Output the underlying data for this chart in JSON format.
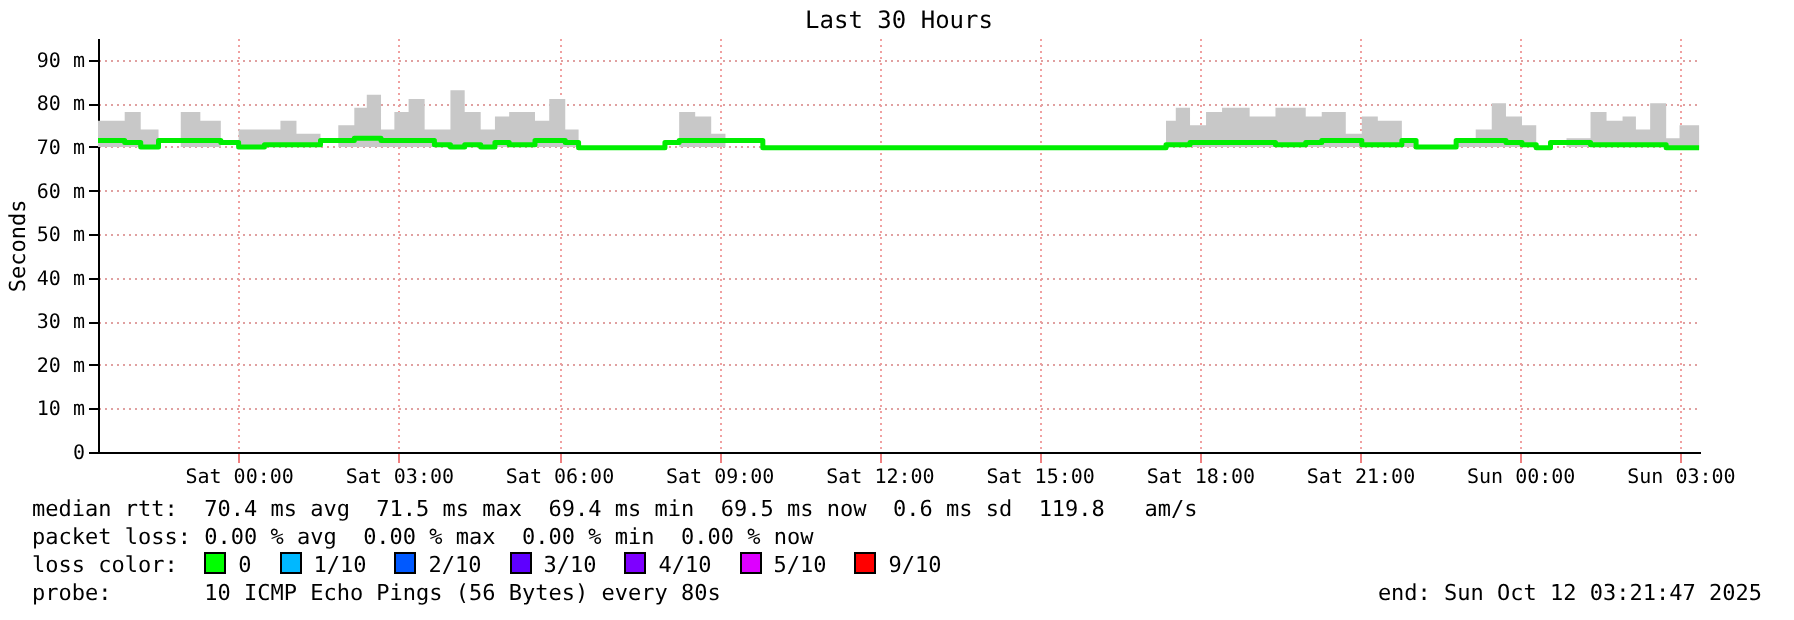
{
  "chart_data": {
    "type": "step",
    "title": "Last 30 Hours",
    "ylabel": "Seconds",
    "x": [
      "2025-10-10T21:22",
      "2025-10-10T21:52",
      "2025-10-10T22:10",
      "2025-10-10T22:30",
      "2025-10-10T22:55",
      "2025-10-10T23:17",
      "2025-10-10T23:40",
      "2025-10-11T00:00",
      "2025-10-11T00:29",
      "2025-10-11T00:47",
      "2025-10-11T01:05",
      "2025-10-11T01:32",
      "2025-10-11T01:52",
      "2025-10-11T02:10",
      "2025-10-11T02:24",
      "2025-10-11T02:40",
      "2025-10-11T02:55",
      "2025-10-11T03:11",
      "2025-10-11T03:29",
      "2025-10-11T03:40",
      "2025-10-11T03:58",
      "2025-10-11T04:14",
      "2025-10-11T04:32",
      "2025-10-11T04:48",
      "2025-10-11T05:04",
      "2025-10-11T05:33",
      "2025-10-11T05:49",
      "2025-10-11T06:07",
      "2025-10-11T06:22",
      "2025-10-11T07:59",
      "2025-10-11T08:15",
      "2025-10-11T08:33",
      "2025-10-11T08:51",
      "2025-10-11T09:07",
      "2025-10-11T09:49",
      "2025-10-11T17:22",
      "2025-10-11T17:33",
      "2025-10-11T17:49",
      "2025-10-11T18:07",
      "2025-10-11T18:25",
      "2025-10-11T18:56",
      "2025-10-11T19:25",
      "2025-10-11T19:59",
      "2025-10-11T20:17",
      "2025-10-11T20:44",
      "2025-10-11T21:02",
      "2025-10-11T21:20",
      "2025-10-11T21:47",
      "2025-10-11T22:03",
      "2025-10-11T22:48",
      "2025-10-11T23:10",
      "2025-10-11T23:28",
      "2025-10-11T23:44",
      "2025-10-12T00:02",
      "2025-10-12T00:18",
      "2025-10-12T00:34",
      "2025-10-12T00:52",
      "2025-10-12T01:19",
      "2025-10-12T01:37",
      "2025-10-12T01:55",
      "2025-10-12T02:10",
      "2025-10-12T02:26",
      "2025-10-12T02:44",
      "2025-10-12T02:59",
      "2025-10-12T03:21"
    ],
    "series": [
      {
        "color": "#00ee00",
        "values": [
          71.5,
          71,
          70,
          71.5,
          71.5,
          71.5,
          71,
          70,
          70.5,
          70.5,
          70.5,
          71.5,
          71.5,
          72,
          72,
          71.5,
          71.5,
          71.5,
          71.5,
          70.5,
          70,
          70.5,
          70,
          71,
          70.5,
          71.5,
          71.5,
          71,
          69.8,
          71,
          71.5,
          71.5,
          71.5,
          71.5,
          69.8,
          70.5,
          70.5,
          71,
          71,
          71,
          71,
          70.5,
          71,
          71.5,
          71.5,
          70.5,
          70.5,
          71.5,
          70,
          71.5,
          71.5,
          71.5,
          71,
          70.5,
          69.8,
          71,
          71,
          70.5,
          70.5,
          70.5,
          70.5,
          70.5,
          69.8,
          69.8,
          69.8
        ],
        "lower": [
          70,
          70,
          70,
          71.5,
          70,
          70,
          71,
          70,
          70,
          70,
          70,
          71.5,
          70,
          70,
          70,
          70,
          70,
          70,
          70,
          70,
          70,
          70,
          70,
          70,
          70,
          70,
          70,
          70,
          69.8,
          71,
          70,
          70,
          70,
          71.5,
          69.8,
          70,
          70,
          70,
          70,
          70,
          70,
          70,
          70,
          70,
          70,
          70,
          70,
          70,
          70,
          70,
          70,
          70,
          70,
          70,
          69.8,
          71,
          70,
          70,
          70,
          70,
          70,
          70,
          69.8,
          69.8,
          69.8
        ],
        "upper": [
          76,
          78,
          74,
          71.5,
          78,
          76,
          71,
          74,
          74,
          76,
          73,
          71.5,
          75,
          79,
          82,
          74,
          78,
          81,
          74,
          74,
          83,
          78,
          74,
          77,
          78,
          76,
          81,
          74,
          69.8,
          71,
          78,
          77,
          73,
          71.5,
          69.8,
          76,
          79,
          75,
          78,
          79,
          77,
          79,
          77,
          78,
          73,
          77,
          76,
          72,
          70,
          72,
          74,
          80,
          77,
          75,
          69.8,
          71,
          72,
          78,
          76,
          77,
          74,
          80,
          72,
          75,
          75
        ]
      }
    ],
    "xlim": [
      "2025-10-10T21:22",
      "2025-10-12T03:22"
    ],
    "xticks": [
      {
        "value": "2025-10-11T00:00",
        "label": "Sat 00:00"
      },
      {
        "value": "2025-10-11T03:00",
        "label": "Sat 03:00"
      },
      {
        "value": "2025-10-11T06:00",
        "label": "Sat 06:00"
      },
      {
        "value": "2025-10-11T09:00",
        "label": "Sat 09:00"
      },
      {
        "value": "2025-10-11T12:00",
        "label": "Sat 12:00"
      },
      {
        "value": "2025-10-11T15:00",
        "label": "Sat 15:00"
      },
      {
        "value": "2025-10-11T18:00",
        "label": "Sat 18:00"
      },
      {
        "value": "2025-10-11T21:00",
        "label": "Sat 21:00"
      },
      {
        "value": "2025-10-12T00:00",
        "label": "Sun 00:00"
      },
      {
        "value": "2025-10-12T03:00",
        "label": "Sun 03:00"
      }
    ],
    "ylim": [
      0,
      95
    ],
    "yticks": [
      0,
      {
        "value": 10,
        "label": "10 m"
      },
      {
        "value": 20,
        "label": "20 m"
      },
      {
        "value": 30,
        "label": "30 m"
      },
      {
        "value": 40,
        "label": "40 m"
      },
      {
        "value": 50,
        "label": "50 m"
      },
      {
        "value": 60,
        "label": "60 m"
      },
      {
        "value": 70,
        "label": "70 m"
      },
      {
        "value": 80,
        "label": "80 m"
      },
      {
        "value": 90,
        "label": "90 m"
      }
    ],
    "grid": true,
    "annotations": [
      "median rtt:  70.4 ms avg  71.5 ms max  69.4 ms min  69.5 ms now  0.6 ms sd  119.8   am/s",
      "packet loss: 0.00 % avg  0.00 % max  0.00 % min  0.00 % now",
      "loss color:",
      "0",
      "1/10",
      "2/10",
      "3/10",
      "4/10",
      "5/10",
      "9/10",
      "probe:       10 ICMP Echo Pings (56 Bytes) every 80s",
      "end: Sun Oct 12 03:21:47 2025"
    ]
  }
}
